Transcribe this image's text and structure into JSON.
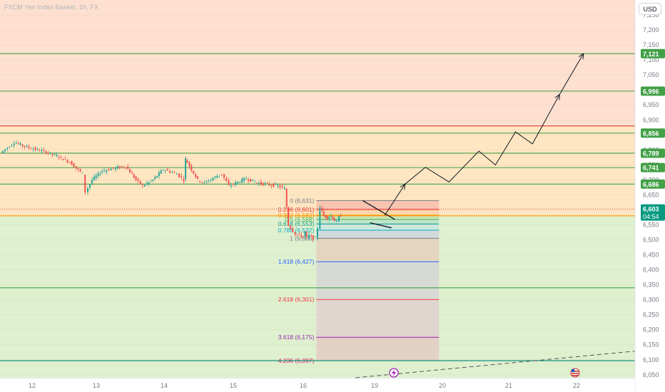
{
  "header": {
    "title": "FXCM Yen Index Basket, 1h, FX",
    "currency_button": "USD"
  },
  "colors": {
    "zone_top": "#fde0cf",
    "zone_mid": "#fde6c1",
    "zone_bottom": "#dff0cf",
    "up_candle": "#26a69a",
    "down_candle": "#ef5350",
    "green_line": "#43a047",
    "red_line": "#e53935",
    "orange_line": "#ff9800",
    "teal_line": "#00897b"
  },
  "chart_data": {
    "type": "candlestick",
    "y_range": [
      6040,
      7300
    ],
    "y_ticks": [
      "7,250",
      "7,200",
      "7,150",
      "7,100",
      "7,050",
      "7,000",
      "6,950",
      "6,900",
      "6,850",
      "6,800",
      "6,750",
      "6,700",
      "6,650",
      "6,600",
      "6,550",
      "6,500",
      "6,450",
      "6,400",
      "6,350",
      "6,300",
      "6,250",
      "6,200",
      "6,150",
      "6,100",
      "6,050"
    ],
    "y_tick_values": [
      7250,
      7200,
      7150,
      7100,
      7050,
      7000,
      6950,
      6900,
      6850,
      6800,
      6750,
      6700,
      6650,
      6600,
      6550,
      6500,
      6450,
      6400,
      6350,
      6300,
      6250,
      6200,
      6150,
      6100,
      6050
    ],
    "x_ticks": [
      {
        "label": "12",
        "day": 12
      },
      {
        "label": "13",
        "day": 13
      },
      {
        "label": "14",
        "day": 14
      },
      {
        "label": "15",
        "day": 15
      },
      {
        "label": "16",
        "day": 16
      },
      {
        "label": "19",
        "day": 19
      },
      {
        "label": "20",
        "day": 20
      },
      {
        "label": "21",
        "day": 21
      },
      {
        "label": "22",
        "day": 22
      }
    ],
    "zones": [
      {
        "from": 6880,
        "to": 7300,
        "color": "#fde0cf"
      },
      {
        "from": 6580,
        "to": 6880,
        "color": "#fde6c1"
      },
      {
        "from": 6040,
        "to": 6580,
        "color": "#dff0cf"
      }
    ],
    "horizontal_levels": [
      {
        "value": 7121,
        "label": "7,121",
        "color": "#43a047"
      },
      {
        "value": 6996,
        "label": "6,996",
        "color": "#43a047"
      },
      {
        "value": 6880,
        "label": "",
        "color": "#e53935"
      },
      {
        "value": 6856,
        "label": "6,856",
        "color": "#43a047"
      },
      {
        "value": 6789,
        "label": "6,789",
        "color": "#43a047"
      },
      {
        "value": 6741,
        "label": "6,741",
        "color": "#43a047"
      },
      {
        "value": 6686,
        "label": "6,686",
        "color": "#43a047"
      },
      {
        "value": 6580,
        "label": "",
        "color": "#ff9800"
      },
      {
        "value": 6340,
        "label": "",
        "color": "#43a047"
      },
      {
        "value": 6097,
        "label": "",
        "color": "#00897b"
      }
    ],
    "last_price": {
      "label": "6,603",
      "countdown": "04:54",
      "value": 6603
    },
    "fibonacci": {
      "x_start_day": 16.55,
      "x_end_day": 19.95,
      "levels": [
        {
          "ratio": "0",
          "price": 6631,
          "label": "0 (6,631)",
          "color": "#787b86"
        },
        {
          "ratio": "0.236",
          "price": 6601,
          "label": "0.236 (6,601)",
          "color": "#e53935"
        },
        {
          "ratio": "0.382",
          "price": 6582,
          "label": "0.382 (6,582)",
          "color": "#ff9800"
        },
        {
          "ratio": "0.5",
          "price": 6568,
          "label": "0.5 (6,568)",
          "color": "#4caf50"
        },
        {
          "ratio": "0.618",
          "price": 6553,
          "label": "0.618 (6,553)",
          "color": "#089981"
        },
        {
          "ratio": "0.786",
          "price": 6532,
          "label": "0.786 (6,532)",
          "color": "#00acc1"
        },
        {
          "ratio": "1",
          "price": 6505,
          "label": "1 (6,505)",
          "color": "#787b86"
        },
        {
          "ratio": "1.618",
          "price": 6427,
          "label": "1.618 (6,427)",
          "color": "#2962ff"
        },
        {
          "ratio": "2.618",
          "price": 6301,
          "label": "2.618 (6,301)",
          "color": "#f23645"
        },
        {
          "ratio": "3.618",
          "price": 6175,
          "label": "3.618 (6,175)",
          "color": "#9c27b0"
        },
        {
          "ratio": "4.236",
          "price": 6097,
          "label": "4.236 (6,097)",
          "color": "#e91e63"
        }
      ]
    },
    "projection_path": [
      {
        "day": 19.15,
        "value": 6582
      },
      {
        "day": 19.45,
        "value": 6686
      },
      {
        "day": 19.75,
        "value": 6742
      },
      {
        "day": 20.1,
        "value": 6693
      },
      {
        "day": 20.55,
        "value": 6796
      },
      {
        "day": 20.8,
        "value": 6750
      },
      {
        "day": 21.1,
        "value": 6860
      },
      {
        "day": 21.35,
        "value": 6820
      },
      {
        "day": 21.75,
        "value": 6985
      },
      {
        "day": 22.1,
        "value": 7121
      }
    ],
    "triangle": {
      "upper": [
        {
          "day": 18.5,
          "value": 6631
        },
        {
          "day": 19.3,
          "value": 6568
        }
      ],
      "lower": [
        {
          "day": 18.8,
          "value": 6557
        },
        {
          "day": 19.25,
          "value": 6540
        }
      ]
    },
    "dashed_trend": [
      {
        "day": 18.2,
        "value": 6040
      },
      {
        "day": 22.9,
        "value": 6130
      }
    ],
    "candles_close_path": [
      {
        "day": 11.55,
        "value": 6790
      },
      {
        "day": 11.75,
        "value": 6825
      },
      {
        "day": 12.0,
        "value": 6805
      },
      {
        "day": 12.2,
        "value": 6795
      },
      {
        "day": 12.4,
        "value": 6780
      },
      {
        "day": 12.6,
        "value": 6760
      },
      {
        "day": 12.8,
        "value": 6720
      },
      {
        "day": 12.85,
        "value": 6660
      },
      {
        "day": 12.95,
        "value": 6700
      },
      {
        "day": 13.1,
        "value": 6730
      },
      {
        "day": 13.3,
        "value": 6740
      },
      {
        "day": 13.45,
        "value": 6745
      },
      {
        "day": 13.6,
        "value": 6700
      },
      {
        "day": 13.7,
        "value": 6680
      },
      {
        "day": 13.85,
        "value": 6700
      },
      {
        "day": 14.0,
        "value": 6735
      },
      {
        "day": 14.2,
        "value": 6720
      },
      {
        "day": 14.3,
        "value": 6700
      },
      {
        "day": 14.32,
        "value": 6770
      },
      {
        "day": 14.5,
        "value": 6700
      },
      {
        "day": 14.6,
        "value": 6690
      },
      {
        "day": 14.75,
        "value": 6710
      },
      {
        "day": 14.85,
        "value": 6720
      },
      {
        "day": 14.95,
        "value": 6680
      },
      {
        "day": 15.05,
        "value": 6690
      },
      {
        "day": 15.2,
        "value": 6705
      },
      {
        "day": 15.35,
        "value": 6690
      },
      {
        "day": 15.5,
        "value": 6685
      },
      {
        "day": 15.65,
        "value": 6680
      },
      {
        "day": 15.75,
        "value": 6670
      },
      {
        "day": 15.8,
        "value": 6550
      },
      {
        "day": 15.9,
        "value": 6520
      },
      {
        "day": 16.05,
        "value": 6510
      },
      {
        "day": 16.1,
        "value": 6525
      },
      {
        "day": 16.18,
        "value": 6505
      },
      {
        "day": 16.3,
        "value": 6515
      },
      {
        "day": 16.45,
        "value": 6505
      },
      {
        "day": 16.55,
        "value": 6505
      },
      {
        "day": 16.65,
        "value": 6540
      },
      {
        "day": 16.75,
        "value": 6610
      },
      {
        "day": 16.9,
        "value": 6580
      },
      {
        "day": 17.05,
        "value": 6575
      },
      {
        "day": 17.2,
        "value": 6580
      },
      {
        "day": 17.35,
        "value": 6565
      },
      {
        "day": 17.45,
        "value": 6560
      },
      {
        "day": 17.55,
        "value": 6575
      },
      {
        "day": 17.6,
        "value": 6582
      }
    ]
  }
}
